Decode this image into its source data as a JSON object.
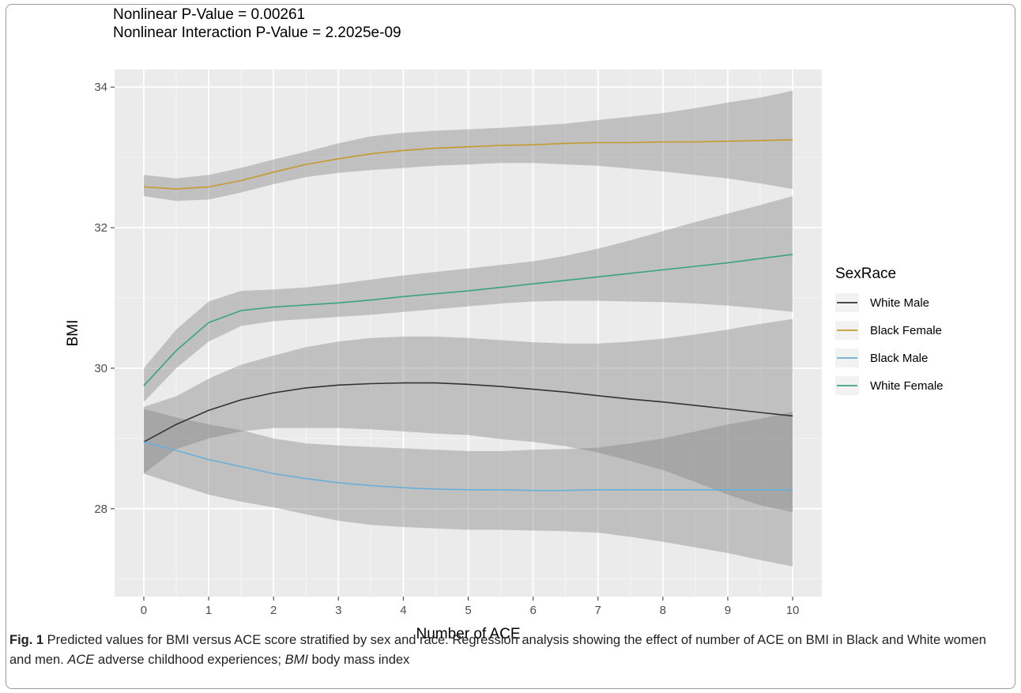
{
  "chart_data": {
    "type": "line",
    "subtitles": [
      "Nonlinear P-Value = 0.00261",
      "Nonlinear Interaction P-Value = 2.2025e-09"
    ],
    "xlabel": "Number of ACE",
    "ylabel": "BMI",
    "xlim": [
      -0.45,
      10.45
    ],
    "ylim": [
      26.75,
      34.25
    ],
    "xticks": [
      0,
      1,
      2,
      3,
      4,
      5,
      6,
      7,
      8,
      9,
      10
    ],
    "yticks": [
      28,
      30,
      32,
      34
    ],
    "grid": true,
    "legend": {
      "title": "SexRace",
      "position": "right"
    },
    "x": [
      0,
      0.5,
      1,
      1.5,
      2,
      2.5,
      3,
      3.5,
      4,
      4.5,
      5,
      5.5,
      6,
      6.5,
      7,
      7.5,
      8,
      8.5,
      9,
      9.5,
      10
    ],
    "series": [
      {
        "name": "White Male",
        "color": "#333333",
        "values": [
          28.95,
          29.2,
          29.4,
          29.55,
          29.65,
          29.72,
          29.76,
          29.78,
          29.79,
          29.79,
          29.77,
          29.74,
          29.7,
          29.66,
          29.61,
          29.56,
          29.52,
          29.47,
          29.42,
          29.37,
          29.32
        ],
        "lower": [
          28.5,
          28.85,
          29.0,
          29.1,
          29.15,
          29.15,
          29.15,
          29.13,
          29.1,
          29.07,
          29.05,
          28.99,
          28.95,
          28.89,
          28.8,
          28.68,
          28.55,
          28.38,
          28.2,
          28.05,
          27.95
        ],
        "upper": [
          29.45,
          29.6,
          29.85,
          30.05,
          30.18,
          30.3,
          30.38,
          30.43,
          30.45,
          30.45,
          30.43,
          30.4,
          30.37,
          30.35,
          30.35,
          30.38,
          30.42,
          30.48,
          30.55,
          30.63,
          30.7
        ]
      },
      {
        "name": "Black Female",
        "color": "#c49a2e",
        "values": [
          32.58,
          32.55,
          32.58,
          32.67,
          32.79,
          32.9,
          32.98,
          33.05,
          33.1,
          33.13,
          33.15,
          33.17,
          33.18,
          33.2,
          33.21,
          33.21,
          33.22,
          33.22,
          33.23,
          33.24,
          33.25
        ],
        "lower": [
          32.45,
          32.38,
          32.4,
          32.5,
          32.62,
          32.72,
          32.78,
          32.82,
          32.85,
          32.88,
          32.9,
          32.92,
          32.92,
          32.9,
          32.88,
          32.84,
          32.8,
          32.75,
          32.7,
          32.63,
          32.55
        ],
        "upper": [
          32.75,
          32.7,
          32.75,
          32.85,
          32.97,
          33.08,
          33.2,
          33.3,
          33.35,
          33.38,
          33.4,
          33.42,
          33.45,
          33.48,
          33.53,
          33.58,
          33.63,
          33.7,
          33.78,
          33.85,
          33.95
        ]
      },
      {
        "name": "Black Male",
        "color": "#6aaedc",
        "values": [
          28.95,
          28.83,
          28.7,
          28.6,
          28.5,
          28.43,
          28.37,
          28.33,
          28.3,
          28.28,
          28.27,
          28.27,
          28.26,
          28.26,
          28.27,
          28.27,
          28.27,
          28.27,
          28.27,
          28.27,
          28.27
        ],
        "lower": [
          28.5,
          28.35,
          28.2,
          28.1,
          28.02,
          27.92,
          27.83,
          27.77,
          27.74,
          27.72,
          27.7,
          27.7,
          27.69,
          27.68,
          27.66,
          27.6,
          27.53,
          27.45,
          27.37,
          27.27,
          27.18
        ],
        "upper": [
          29.42,
          29.3,
          29.2,
          29.12,
          29.0,
          28.93,
          28.9,
          28.88,
          28.86,
          28.84,
          28.82,
          28.82,
          28.84,
          28.85,
          28.87,
          28.93,
          29.0,
          29.1,
          29.2,
          29.28,
          29.38
        ]
      },
      {
        "name": "White Female",
        "color": "#3aa37c",
        "values": [
          29.75,
          30.25,
          30.65,
          30.82,
          30.87,
          30.9,
          30.93,
          30.97,
          31.02,
          31.06,
          31.1,
          31.15,
          31.2,
          31.25,
          31.3,
          31.35,
          31.4,
          31.45,
          31.5,
          31.56,
          31.62
        ],
        "lower": [
          29.52,
          30.0,
          30.38,
          30.6,
          30.67,
          30.7,
          30.73,
          30.76,
          30.8,
          30.84,
          30.88,
          30.92,
          30.95,
          30.96,
          30.96,
          30.95,
          30.94,
          30.92,
          30.89,
          30.85,
          30.8
        ],
        "upper": [
          30.0,
          30.55,
          30.95,
          31.1,
          31.12,
          31.15,
          31.2,
          31.26,
          31.32,
          31.37,
          31.42,
          31.47,
          31.52,
          31.6,
          31.7,
          31.82,
          31.95,
          32.08,
          32.2,
          32.32,
          32.45
        ]
      }
    ]
  },
  "caption": {
    "label": "Fig. 1",
    "text": "  Predicted values for BMI versus ACE score stratified by sex and race. Regression analysis showing the effect of number of ACE on BMI in Black and White women and men. ",
    "abbr1": "ACE",
    "def1": " adverse childhood experiences; ",
    "abbr2": "BMI",
    "def2": " body mass index"
  }
}
